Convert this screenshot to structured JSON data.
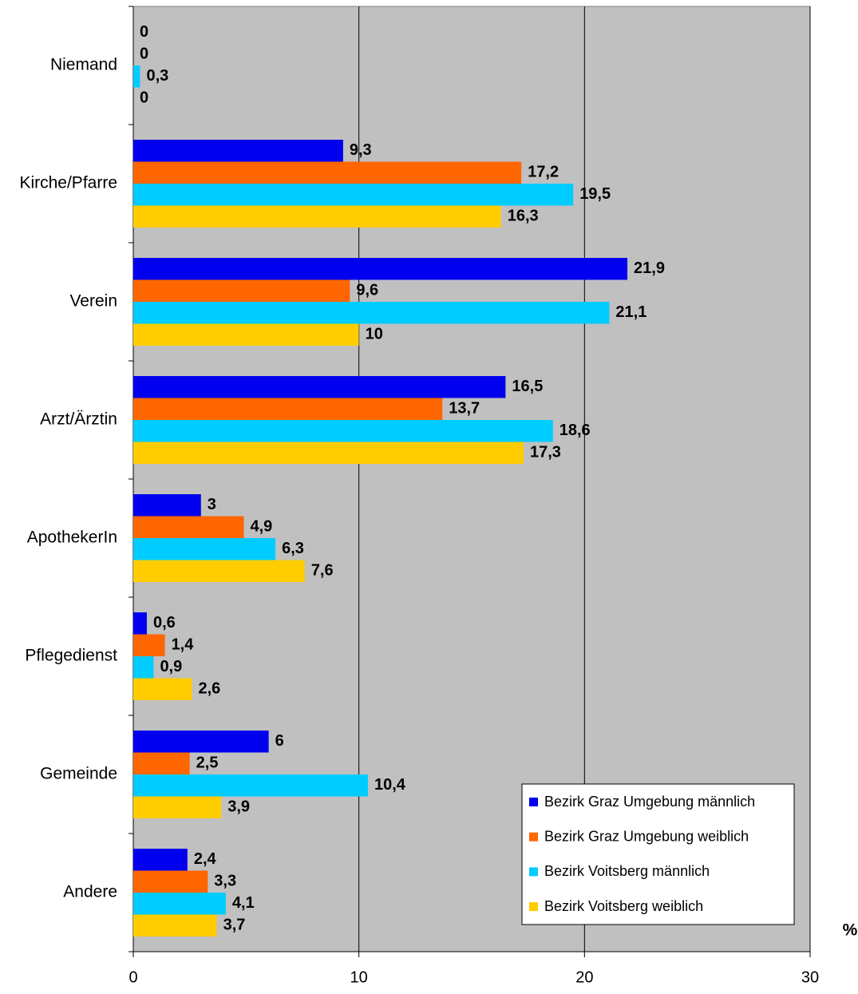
{
  "chart_data": {
    "type": "hbar",
    "categories": [
      "Niemand",
      "Kirche/Pfarre",
      "Verein",
      "Arzt/Ärztin",
      "ApothekerIn",
      "Pflegedienst",
      "Gemeinde",
      "Andere"
    ],
    "series": [
      {
        "name": "Bezirk Graz Umgebung männlich",
        "color": "#0000ee",
        "values": [
          0,
          9.3,
          21.9,
          16.5,
          3,
          0.6,
          6,
          2.4
        ],
        "value_labels": [
          "0",
          "9,3",
          "21,9",
          "16,5",
          "3",
          "0,6",
          "6",
          "2,4"
        ]
      },
      {
        "name": "Bezirk Graz Umgebung weiblich",
        "color": "#ff6600",
        "values": [
          0,
          17.2,
          9.6,
          13.7,
          4.9,
          1.4,
          2.5,
          3.3
        ],
        "value_labels": [
          "0",
          "17,2",
          "9,6",
          "13,7",
          "4,9",
          "1,4",
          "2,5",
          "3,3"
        ]
      },
      {
        "name": "Bezirk Voitsberg männlich",
        "color": "#00ccff",
        "values": [
          0.3,
          19.5,
          21.1,
          18.6,
          6.3,
          0.9,
          10.4,
          4.1
        ],
        "value_labels": [
          "0,3",
          "19,5",
          "21,1",
          "18,6",
          "6,3",
          "0,9",
          "10,4",
          "4,1"
        ]
      },
      {
        "name": "Bezirk Voitsberg weiblich",
        "color": "#ffcc00",
        "values": [
          0,
          16.3,
          10,
          17.3,
          7.6,
          2.6,
          3.9,
          3.7
        ],
        "value_labels": [
          "0",
          "16,3",
          "10",
          "17,3",
          "7,6",
          "2,6",
          "3,9",
          "3,7"
        ]
      }
    ],
    "x_label": "%",
    "xlim": [
      0,
      30
    ],
    "xticks": [
      0,
      10,
      20,
      30
    ],
    "grid": true,
    "legend": "lower right",
    "background": "#c0c0c0"
  }
}
